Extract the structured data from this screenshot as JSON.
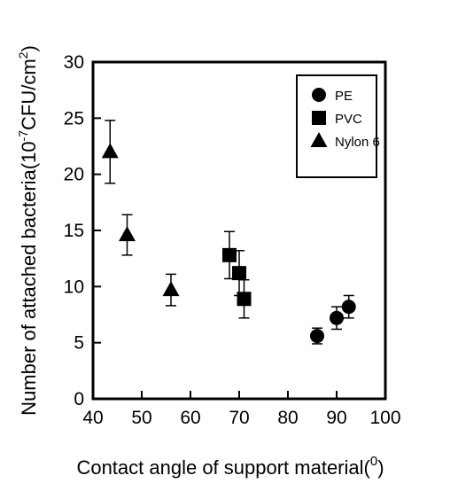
{
  "chart_data": {
    "type": "scatter",
    "title": "",
    "xlabel": "Contact angle of support material(",
    "xlabel_sup": "0",
    "xlabel_end": ")",
    "ylabel": "Number of attached bacteria(10",
    "ylabel_sup": "-7",
    "ylabel_mid": "CFU/cm",
    "ylabel_sup2": "2",
    "ylabel_end": ")",
    "xlim": [
      40,
      100
    ],
    "ylim": [
      0,
      30
    ],
    "xticks": [
      "40",
      "50",
      "60",
      "70",
      "80",
      "90",
      "100"
    ],
    "yticks": [
      "0",
      "5",
      "10",
      "15",
      "20",
      "25",
      "30"
    ],
    "grid": false,
    "legend_position": "top-right",
    "series": [
      {
        "name": "PE",
        "marker": "circle",
        "x": [
          86,
          90,
          92.5
        ],
        "y": [
          5.6,
          7.2,
          8.2
        ],
        "err": [
          0.7,
          1.0,
          1.0
        ]
      },
      {
        "name": "PVC",
        "marker": "square",
        "x": [
          68,
          70,
          71
        ],
        "y": [
          12.8,
          11.2,
          8.9
        ],
        "err": [
          2.1,
          2.0,
          1.7
        ]
      },
      {
        "name": "Nylon 6",
        "marker": "triangle",
        "x": [
          43.5,
          47,
          56
        ],
        "y": [
          22.0,
          14.6,
          9.7
        ],
        "err": [
          2.8,
          1.8,
          1.4
        ]
      }
    ]
  }
}
